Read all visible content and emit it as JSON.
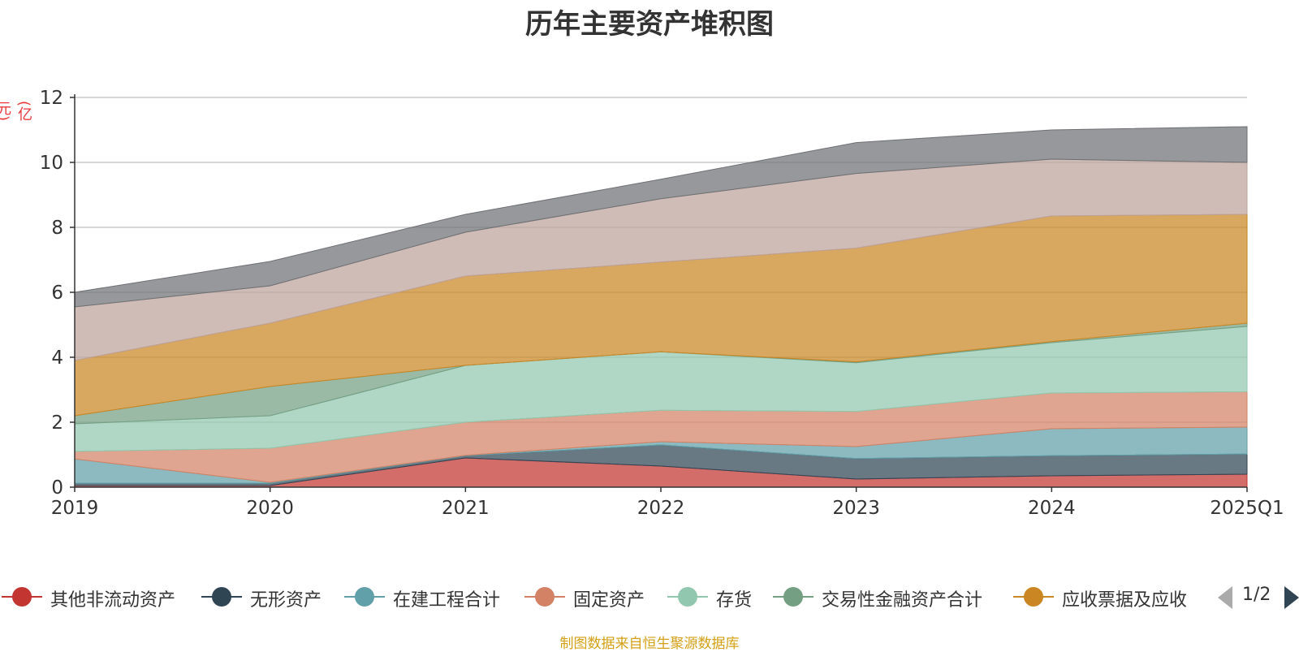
{
  "chart_data": {
    "type": "area",
    "stacked": true,
    "title": "历年主要资产堆积图",
    "unit_label": "(亿元)",
    "categories": [
      "2019",
      "2020",
      "2021",
      "2022",
      "2023",
      "2024",
      "2025Q1"
    ],
    "ylim": [
      0,
      12
    ],
    "yticks": [
      "0",
      "2",
      "4",
      "6",
      "8",
      "10",
      "12"
    ],
    "grid": true,
    "legend_position": "bottom",
    "series": [
      {
        "name": "其他非流动资产",
        "color": "#c23531",
        "values": [
          0.05,
          0.05,
          0.9,
          0.65,
          0.25,
          0.35,
          0.4
        ]
      },
      {
        "name": "无形资产",
        "color": "#2f4554",
        "values": [
          0.07,
          0.07,
          0.07,
          0.65,
          0.63,
          0.62,
          0.62
        ]
      },
      {
        "name": "在建工程合计",
        "color": "#61a0a8",
        "values": [
          0.75,
          0.03,
          0.01,
          0.1,
          0.37,
          0.83,
          0.83
        ]
      },
      {
        "name": "固定资产",
        "color": "#d48265",
        "values": [
          0.23,
          1.05,
          1.02,
          0.97,
          1.08,
          1.1,
          1.09
        ]
      },
      {
        "name": "存货",
        "color": "#91c7ae",
        "values": [
          0.85,
          1.0,
          1.75,
          1.8,
          1.5,
          1.55,
          2.01
        ]
      },
      {
        "name": "交易性金融资产合计",
        "color": "#749f83",
        "values": [
          0.25,
          0.9,
          0.0,
          0.0,
          0.03,
          0.03,
          0.1
        ]
      },
      {
        "name": "应收票据及应收",
        "color": "#ca8622",
        "values": [
          1.7,
          1.95,
          2.75,
          2.76,
          3.5,
          3.87,
          3.35
        ]
      },
      {
        "name": "",
        "color": "#bda29a",
        "values": [
          1.65,
          1.15,
          1.35,
          1.95,
          2.3,
          1.75,
          1.6
        ]
      },
      {
        "name": "",
        "color": "#6e7074",
        "values": [
          0.45,
          0.75,
          0.55,
          0.6,
          0.95,
          0.9,
          1.1
        ]
      }
    ]
  },
  "legend": {
    "page_label": "1/2"
  },
  "source_text": "制图数据来自恒生聚源数据库"
}
